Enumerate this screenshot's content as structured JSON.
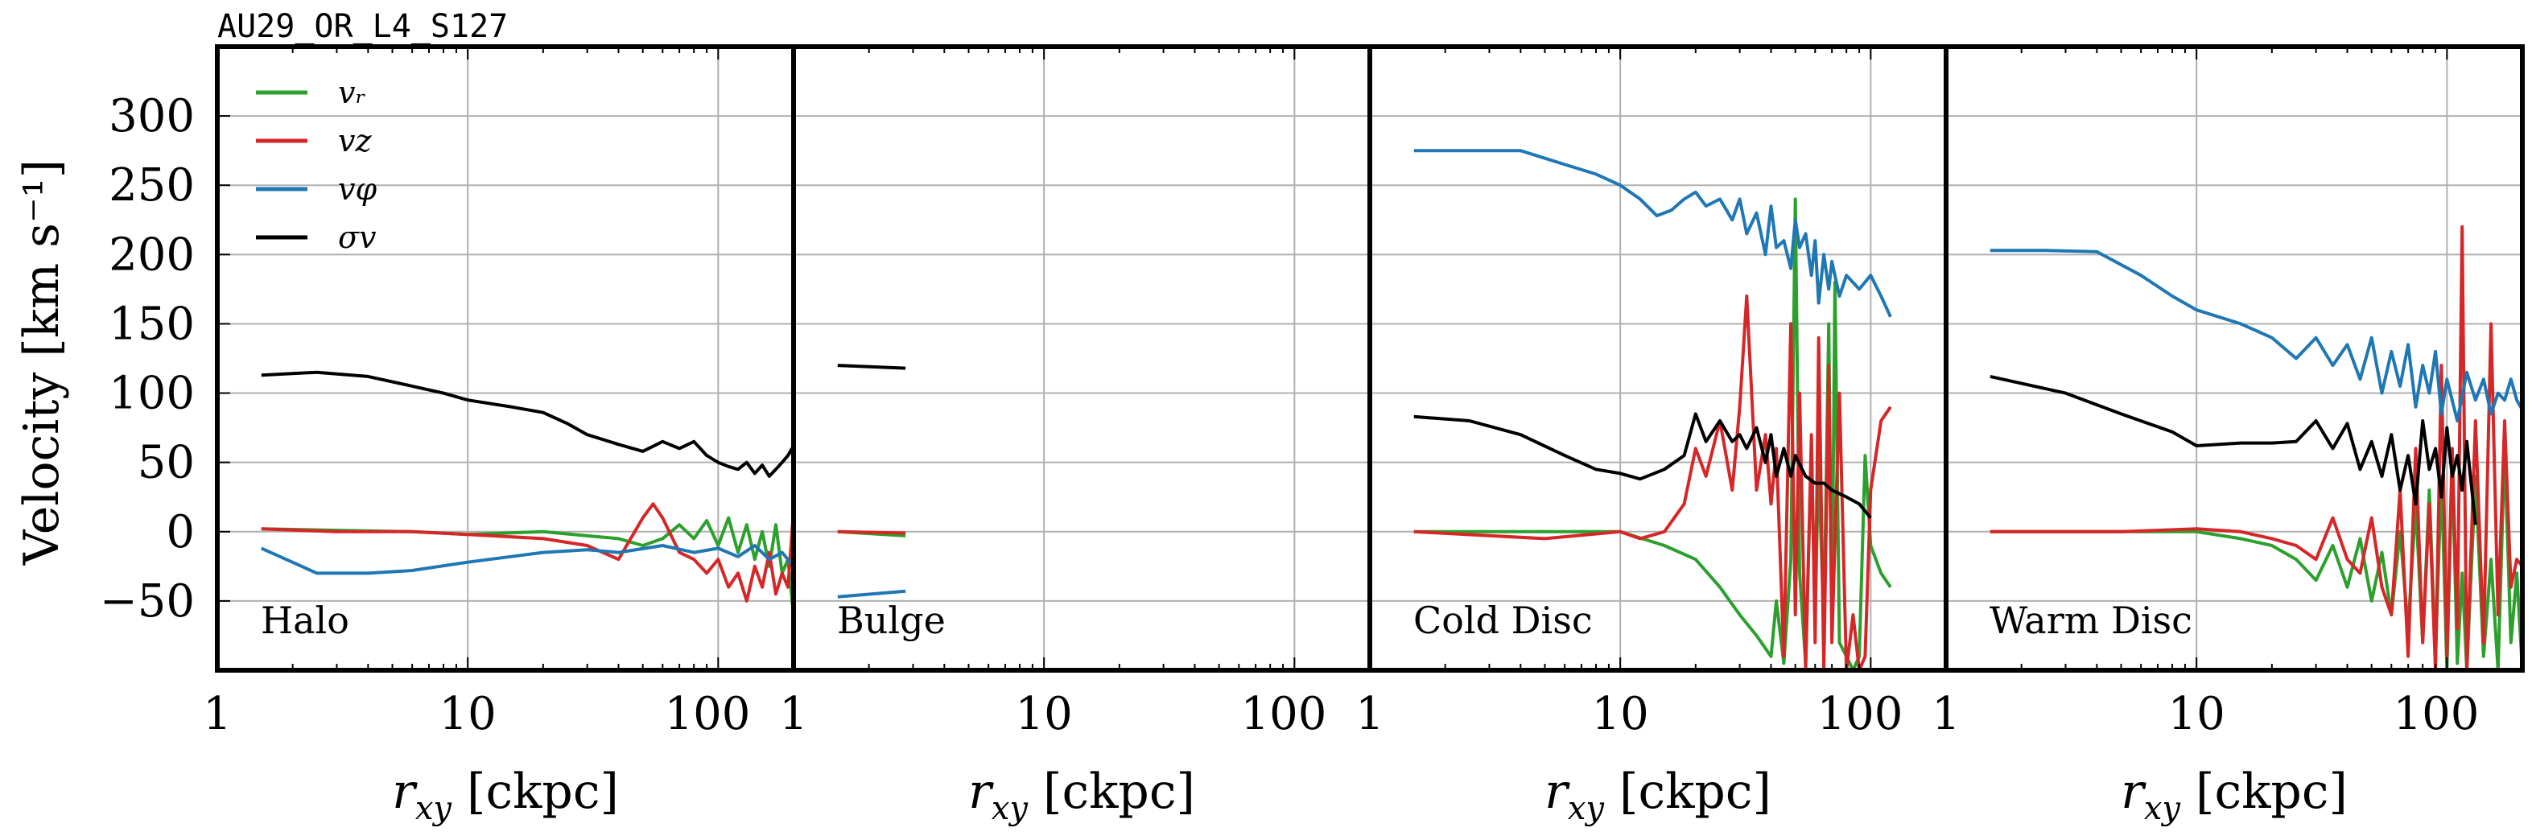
{
  "suptitle": "AU29_OR_L4_S127",
  "chart_data": {
    "type": "line",
    "ylabel": "Velocity [km s⁻¹]",
    "xlabel": "r_xy [ckpc]",
    "xscale": "log",
    "xlim": [
      1,
      200
    ],
    "ylim": [
      -100,
      350
    ],
    "xticks": [
      1,
      10,
      100
    ],
    "xtick_labels": [
      "1",
      "10",
      "100"
    ],
    "yticks": [
      -50,
      0,
      50,
      100,
      150,
      200,
      250,
      300
    ],
    "ytick_labels": [
      "−50",
      "0",
      "50",
      "100",
      "150",
      "200",
      "250",
      "300"
    ],
    "grid": true,
    "legend_position": "top-left",
    "legend": [
      {
        "key": "vr",
        "label": "vᵣ",
        "color": "#2ca02c"
      },
      {
        "key": "vz",
        "label": "v_z",
        "color": "#d62728"
      },
      {
        "key": "vphi",
        "label": "v_φ",
        "color": "#1f77b4"
      },
      {
        "key": "sigma",
        "label": "σ_v",
        "color": "#000000"
      }
    ],
    "panels": [
      {
        "label": "Halo",
        "series": [
          {
            "key": "vr",
            "x": [
              1.5,
              3,
              6,
              10,
              20,
              30,
              40,
              50,
              60,
              70,
              80,
              90,
              100,
              110,
              120,
              130,
              140,
              150,
              160,
              170,
              180,
              190,
              200
            ],
            "y": [
              2,
              1,
              0,
              -2,
              0,
              -3,
              -5,
              -10,
              -5,
              5,
              -5,
              8,
              -10,
              10,
              -15,
              5,
              -20,
              0,
              -25,
              5,
              -30,
              -20,
              -60
            ]
          },
          {
            "key": "vz",
            "x": [
              1.5,
              3,
              6,
              10,
              20,
              30,
              40,
              50,
              55,
              60,
              70,
              80,
              90,
              100,
              110,
              120,
              130,
              140,
              150,
              160,
              170,
              180,
              190,
              200
            ],
            "y": [
              2,
              0,
              0,
              -2,
              -5,
              -10,
              -20,
              10,
              20,
              10,
              -15,
              -20,
              -30,
              -20,
              -40,
              -30,
              -50,
              -25,
              -40,
              -15,
              -45,
              -30,
              -40,
              15
            ]
          },
          {
            "key": "vphi",
            "x": [
              1.5,
              2.5,
              4,
              6,
              10,
              20,
              30,
              40,
              60,
              80,
              100,
              120,
              140,
              160,
              180,
              200
            ],
            "y": [
              -12,
              -30,
              -30,
              -28,
              -22,
              -15,
              -13,
              -15,
              -10,
              -15,
              -12,
              -18,
              -10,
              -20,
              -15,
              -25
            ]
          },
          {
            "key": "sigma",
            "x": [
              1.5,
              2.5,
              4,
              6,
              8,
              10,
              15,
              20,
              25,
              30,
              40,
              50,
              60,
              70,
              80,
              90,
              100,
              110,
              120,
              130,
              140,
              150,
              160,
              170,
              180,
              190,
              200
            ],
            "y": [
              113,
              115,
              112,
              105,
              100,
              95,
              90,
              86,
              78,
              70,
              63,
              58,
              65,
              60,
              65,
              55,
              50,
              47,
              45,
              50,
              42,
              48,
              40,
              45,
              50,
              55,
              62
            ]
          }
        ]
      },
      {
        "label": "Bulge",
        "series": [
          {
            "key": "vr",
            "x": [
              1.5,
              2.8
            ],
            "y": [
              0,
              -3
            ]
          },
          {
            "key": "vz",
            "x": [
              1.5,
              2.8
            ],
            "y": [
              0,
              -1
            ]
          },
          {
            "key": "vphi",
            "x": [
              1.5,
              2.8
            ],
            "y": [
              -47,
              -43
            ]
          },
          {
            "key": "sigma",
            "x": [
              1.5,
              2.8
            ],
            "y": [
              120,
              118
            ]
          }
        ]
      },
      {
        "label": "Cold Disc",
        "series": [
          {
            "key": "vr",
            "x": [
              1.5,
              5,
              10,
              15,
              20,
              25,
              30,
              35,
              40,
              42,
              45,
              48,
              50,
              52,
              55,
              58,
              60,
              62,
              65,
              68,
              70,
              72,
              75,
              80,
              85,
              90,
              95,
              100,
              110,
              120
            ],
            "y": [
              0,
              0,
              0,
              -10,
              -20,
              -40,
              -60,
              -75,
              -90,
              -50,
              -95,
              -20,
              240,
              -30,
              -95,
              60,
              -60,
              50,
              -70,
              150,
              -70,
              180,
              -80,
              -90,
              -100,
              -90,
              55,
              -10,
              -30,
              -40
            ]
          },
          {
            "key": "vz",
            "x": [
              1.5,
              5,
              10,
              12,
              15,
              18,
              20,
              22,
              25,
              28,
              30,
              32,
              35,
              38,
              40,
              42,
              45,
              48,
              50,
              52,
              55,
              58,
              60,
              62,
              65,
              68,
              70,
              75,
              80,
              85,
              90,
              95,
              100,
              110,
              120
            ],
            "y": [
              0,
              -5,
              0,
              -5,
              0,
              20,
              60,
              40,
              80,
              30,
              90,
              170,
              30,
              70,
              20,
              60,
              -90,
              150,
              -60,
              100,
              -100,
              70,
              -80,
              140,
              -100,
              120,
              -80,
              100,
              -100,
              -60,
              -100,
              -90,
              30,
              80,
              90
            ]
          },
          {
            "key": "vphi",
            "x": [
              1.5,
              2.5,
              4,
              6,
              8,
              10,
              12,
              14,
              16,
              18,
              20,
              22,
              25,
              28,
              30,
              32,
              35,
              38,
              40,
              42,
              45,
              48,
              50,
              52,
              55,
              58,
              60,
              62,
              65,
              68,
              70,
              75,
              80,
              90,
              100,
              110,
              120
            ],
            "y": [
              275,
              275,
              275,
              265,
              258,
              250,
              240,
              228,
              232,
              240,
              245,
              235,
              240,
              225,
              240,
              215,
              230,
              200,
              235,
              205,
              210,
              190,
              225,
              205,
              215,
              185,
              210,
              165,
              200,
              175,
              195,
              170,
              185,
              175,
              185,
              170,
              155
            ]
          },
          {
            "key": "sigma",
            "x": [
              1.5,
              2.5,
              4,
              6,
              8,
              10,
              12,
              15,
              18,
              20,
              22,
              25,
              28,
              30,
              32,
              35,
              38,
              40,
              42,
              45,
              48,
              50,
              55,
              60,
              65,
              70,
              80,
              90,
              100
            ],
            "y": [
              83,
              80,
              70,
              55,
              45,
              42,
              38,
              45,
              55,
              85,
              65,
              80,
              65,
              70,
              60,
              75,
              50,
              70,
              40,
              60,
              40,
              55,
              40,
              35,
              35,
              30,
              25,
              20,
              10
            ]
          }
        ]
      },
      {
        "label": "Warm Disc",
        "series": [
          {
            "key": "vr",
            "x": [
              1.5,
              5,
              10,
              15,
              20,
              25,
              30,
              35,
              40,
              45,
              50,
              55,
              60,
              65,
              70,
              75,
              80,
              85,
              90,
              95,
              100,
              105,
              110,
              115,
              120,
              130,
              140,
              150,
              160,
              170,
              180,
              190,
              200
            ],
            "y": [
              0,
              0,
              0,
              -5,
              -10,
              -20,
              -35,
              -10,
              -40,
              -5,
              -50,
              -15,
              -60,
              0,
              -70,
              20,
              -80,
              30,
              -90,
              40,
              -100,
              50,
              -95,
              -30,
              -100,
              40,
              -90,
              -20,
              -100,
              60,
              -80,
              -30,
              -100
            ]
          },
          {
            "key": "vz",
            "x": [
              1.5,
              5,
              10,
              15,
              20,
              25,
              30,
              35,
              40,
              45,
              50,
              55,
              60,
              65,
              70,
              75,
              80,
              85,
              90,
              95,
              100,
              105,
              110,
              115,
              120,
              130,
              140,
              150,
              160,
              170,
              180,
              190,
              200
            ],
            "y": [
              0,
              0,
              2,
              0,
              -5,
              -10,
              -20,
              10,
              -20,
              -30,
              10,
              -40,
              -60,
              30,
              -90,
              60,
              -80,
              20,
              -100,
              120,
              -90,
              60,
              -70,
              220,
              -100,
              80,
              -80,
              150,
              -60,
              80,
              -40,
              -20,
              -25
            ]
          },
          {
            "key": "vphi",
            "x": [
              1.5,
              2.5,
              4,
              6,
              8,
              10,
              15,
              20,
              25,
              30,
              35,
              40,
              45,
              50,
              55,
              60,
              65,
              70,
              75,
              80,
              85,
              90,
              95,
              100,
              110,
              120,
              130,
              140,
              150,
              160,
              170,
              180,
              190,
              200
            ],
            "y": [
              203,
              203,
              202,
              185,
              170,
              160,
              150,
              140,
              125,
              140,
              120,
              135,
              110,
              140,
              100,
              130,
              105,
              135,
              90,
              120,
              100,
              130,
              85,
              110,
              80,
              115,
              95,
              110,
              85,
              100,
              95,
              110,
              95,
              88
            ]
          },
          {
            "key": "sigma",
            "x": [
              1.5,
              3,
              5,
              8,
              10,
              15,
              20,
              25,
              30,
              35,
              40,
              45,
              50,
              55,
              60,
              65,
              70,
              75,
              80,
              85,
              90,
              95,
              100,
              105,
              110,
              115,
              120,
              130
            ],
            "y": [
              112,
              100,
              85,
              72,
              62,
              64,
              64,
              65,
              80,
              60,
              78,
              45,
              65,
              40,
              70,
              30,
              55,
              20,
              80,
              45,
              60,
              25,
              75,
              40,
              55,
              30,
              65,
              5
            ]
          }
        ]
      }
    ]
  }
}
